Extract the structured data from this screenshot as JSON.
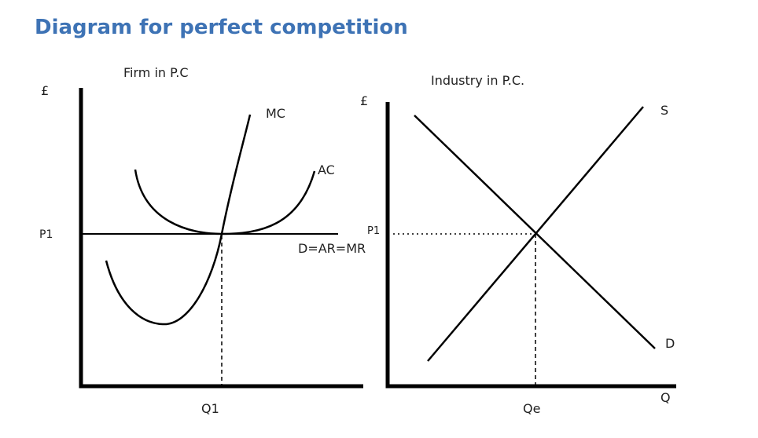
{
  "title": "Diagram for perfect competition",
  "firm": {
    "title": "Firm in P.C",
    "y_axis": "£",
    "price_label": "P1",
    "quantity_label": "Q1",
    "mc_label": "MC",
    "ac_label": "AC",
    "demand_label": "D=AR=MR"
  },
  "industry": {
    "title": "Industry in P.C.",
    "y_axis": "£",
    "x_axis": "Q",
    "price_label": "P1",
    "quantity_label": "Qe",
    "supply_label": "S",
    "demand_label": "D"
  }
}
